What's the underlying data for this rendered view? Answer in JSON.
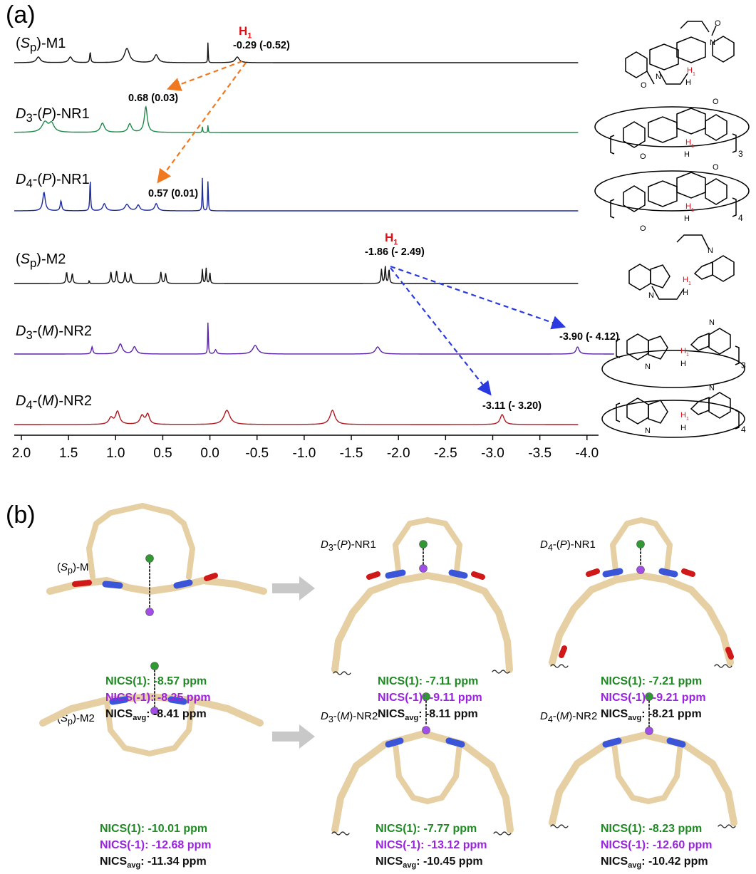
{
  "panel_a": {
    "label": "(a)",
    "axis_ticks": [
      "2.0",
      "1.5",
      "1.0",
      "0.5",
      "0.0",
      "-0.5",
      "-1.0",
      "-1.5",
      "-2.0",
      "-2.5",
      "-3.0",
      "-3.5",
      "-4.0"
    ],
    "spectra": [
      {
        "prefix": "(",
        "sym": "S",
        "sub": "p",
        "suffix": ")-M1",
        "color": "#111111"
      },
      {
        "prefix": "",
        "sym": "D",
        "sub": "3",
        "suffix": "-(P)-NR1",
        "color": "#1e8a4a"
      },
      {
        "prefix": "",
        "sym": "D",
        "sub": "4",
        "suffix": "-(P)-NR1",
        "color": "#1c2aa0"
      },
      {
        "prefix": "(",
        "sym": "S",
        "sub": "p",
        "suffix": ")-M2",
        "color": "#111111"
      },
      {
        "prefix": "",
        "sym": "D",
        "sub": "3",
        "suffix": "-(M)-NR2",
        "color": "#5a22a8"
      },
      {
        "prefix": "",
        "sym": "D",
        "sub": "4",
        "suffix": "-(M)-NR2",
        "color": "#b01820"
      }
    ],
    "h1_label": "H",
    "h1_sub": "1",
    "peak_labels": {
      "m1": "-0.29 (-0.52)",
      "d3_nr1": "0.68 (0.03)",
      "d4_nr1": "0.57 (0.01)",
      "m2": "-1.86 (- 2.49)",
      "d3_nr2": "-3.90 (- 4.12)",
      "d4_nr2": "-3.11 (- 3.20)"
    },
    "structure_subscripts": [
      "3",
      "4",
      "3",
      "4"
    ],
    "arrow_colors": {
      "orange": "#f07820",
      "blue": "#2a3ae0"
    }
  },
  "panel_b": {
    "label": "(b)",
    "molecules": [
      {
        "prefix": "(",
        "sym": "S",
        "sub": "p",
        "suffix": ")-M1",
        "nics1": "NICS(1): -8.57 ppm",
        "nicsm1": "NICS(-1): -8.25 ppm",
        "avg_label": "NICS",
        "avg_sub": "avg",
        "avg_value": ": -8.41 ppm"
      },
      {
        "prefix": "",
        "sym": "D",
        "sub": "3",
        "suffix": "-(P)-NR1",
        "nics1": "NICS(1): -7.11 ppm",
        "nicsm1": "NICS(-1): -9.11 ppm",
        "avg_label": "NICS",
        "avg_sub": "avg",
        "avg_value": ": -8.11 ppm"
      },
      {
        "prefix": "",
        "sym": "D",
        "sub": "4",
        "suffix": "-(P)-NR1",
        "nics1": "NICS(1): -7.21 ppm",
        "nicsm1": "NICS(-1): -9.21 ppm",
        "avg_label": "NICS",
        "avg_sub": "avg",
        "avg_value": ": -8.21 ppm"
      },
      {
        "prefix": "(",
        "sym": "S",
        "sub": "p",
        "suffix": ")-M2",
        "nics1": "NICS(1): -10.01 ppm",
        "nicsm1": "NICS(-1): -12.68 ppm",
        "avg_label": "NICS",
        "avg_sub": "avg",
        "avg_value": ": -11.34 ppm"
      },
      {
        "prefix": "",
        "sym": "D",
        "sub": "3",
        "suffix": "-(M)-NR2",
        "nics1": "NICS(1): -7.77 ppm",
        "nicsm1": "NICS(-1): -13.12 ppm",
        "avg_label": "NICS",
        "avg_sub": "avg",
        "avg_value": ": -10.45 ppm"
      },
      {
        "prefix": "",
        "sym": "D",
        "sub": "4",
        "suffix": "-(M)-NR2",
        "nics1": "NICS(1): -8.23 ppm",
        "nicsm1": "NICS(-1): -12.60 ppm",
        "avg_label": "NICS",
        "avg_sub": "avg",
        "avg_value": ": -10.42 ppm"
      }
    ],
    "colors": {
      "nics1": "#1f8a23",
      "nicsm1": "#9a22e0",
      "stick": "#e6cfa2",
      "nitrogen": "#3a55d8",
      "oxygen": "#d01818"
    }
  }
}
